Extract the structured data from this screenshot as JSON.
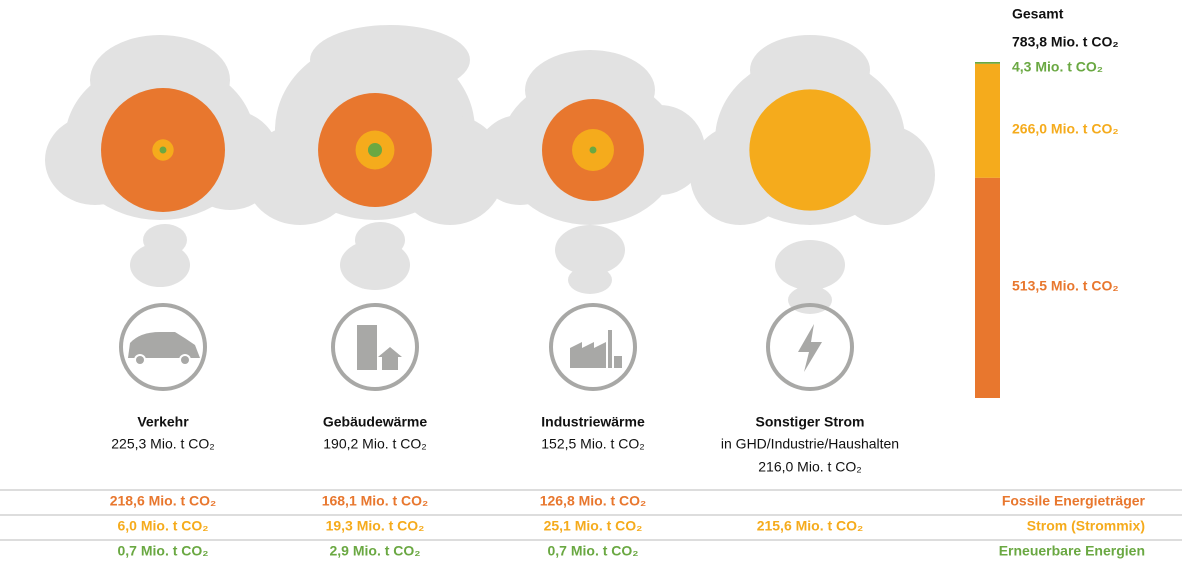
{
  "chart_data": {
    "type": "sector-circles",
    "categories": [
      "Verkehr",
      "Gebäudewärme",
      "Industriewärme",
      "Sonstiger Strom"
    ],
    "notes": [
      null,
      null,
      null,
      "in GHD/Industrie/Haushalten"
    ],
    "totals": [
      225.3,
      190.2,
      152.5,
      216.0
    ],
    "total_labels": [
      "225,3 Mio. t CO₂",
      "190,2 Mio. t CO₂",
      "152,5 Mio. t CO₂",
      "216,0 Mio. t CO₂"
    ],
    "series": [
      {
        "name": "Fossile Energieträger",
        "color": "#e8772e",
        "values": [
          218.6,
          168.1,
          126.8,
          null
        ],
        "value_labels": [
          "218,6 Mio. t CO₂",
          "168,1 Mio. t CO₂",
          "126,8 Mio. t CO₂",
          null
        ],
        "total": 513.5,
        "total_label": "513,5 Mio. t CO₂"
      },
      {
        "name": "Strom (Strommix)",
        "color": "#f5ab1c",
        "values": [
          6.0,
          19.3,
          25.1,
          215.6
        ],
        "value_labels": [
          "6,0 Mio. t CO₂",
          "19,3 Mio. t CO₂",
          "25,1 Mio. t CO₂",
          "215,6 Mio. t CO₂"
        ],
        "total": 266.0,
        "total_label": "266,0 Mio. t CO₂"
      },
      {
        "name": "Erneuerbare Energien",
        "color": "#6aa842",
        "values": [
          0.7,
          2.9,
          0.7,
          null
        ],
        "value_labels": [
          "0,7 Mio. t CO₂",
          "2,9 Mio. t CO₂",
          "0,7 Mio. t CO₂",
          null
        ],
        "total": 4.3,
        "total_label": "4,3 Mio. t CO₂"
      }
    ],
    "grand_total_title": "Gesamt",
    "grand_total": 783.8,
    "grand_total_label": "783,8 Mio. t CO₂"
  }
}
